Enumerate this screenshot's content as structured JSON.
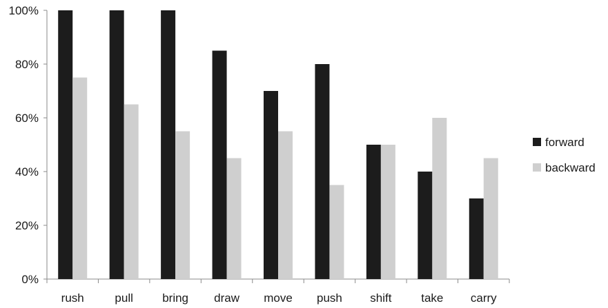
{
  "chart_data": {
    "type": "bar",
    "title": "",
    "xlabel": "",
    "ylabel": "",
    "ylim": [
      0,
      100
    ],
    "y_unit": "%",
    "y_ticks": [
      "0%",
      "20%",
      "40%",
      "60%",
      "80%",
      "100%"
    ],
    "y_tick_values": [
      0,
      20,
      40,
      60,
      80,
      100
    ],
    "categories": [
      "rush",
      "pull",
      "bring",
      "draw",
      "move",
      "push",
      "shift",
      "take",
      "carry"
    ],
    "series": [
      {
        "name": "forward",
        "color": "#1c1c1c",
        "values": [
          100,
          100,
          100,
          85,
          70,
          80,
          50,
          40,
          30
        ]
      },
      {
        "name": "backward",
        "color": "#cfcfcf",
        "values": [
          75,
          65,
          55,
          45,
          55,
          35,
          50,
          60,
          45
        ]
      }
    ],
    "legend_position": "right",
    "grid": false
  }
}
